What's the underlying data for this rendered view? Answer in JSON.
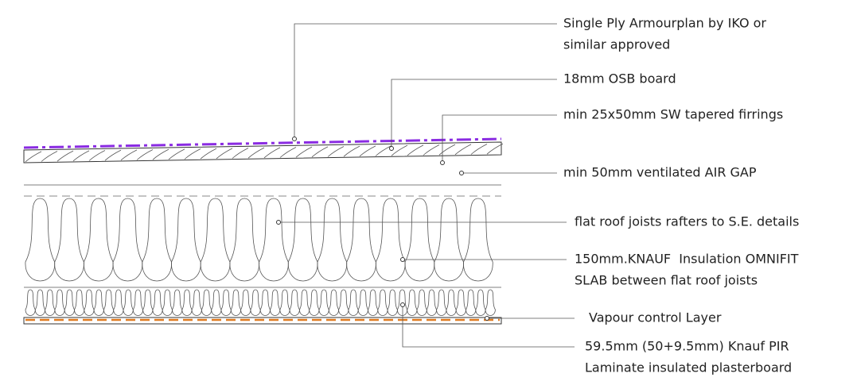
{
  "labels": [
    {
      "lines": [
        "Single Ply Armourplan by IKO or",
        "similar approved"
      ]
    },
    {
      "lines": [
        "18mm OSB board"
      ]
    },
    {
      "lines": [
        "min 25x50mm SW tapered firrings"
      ]
    },
    {
      "lines": [
        "min 50mm ventilated AIR GAP"
      ]
    },
    {
      "lines": [
        "flat roof joists rafters to S.E. details"
      ]
    },
    {
      "lines": [
        "150mm.KNAUF  Insulation OMNIFIT",
        "SLAB between flat roof joists"
      ]
    },
    {
      "lines": [
        "Vapour control Layer"
      ]
    },
    {
      "lines": [
        "59.5mm (50+9.5mm) Knauf PIR",
        "Laminate insulated plasterboard"
      ]
    }
  ]
}
